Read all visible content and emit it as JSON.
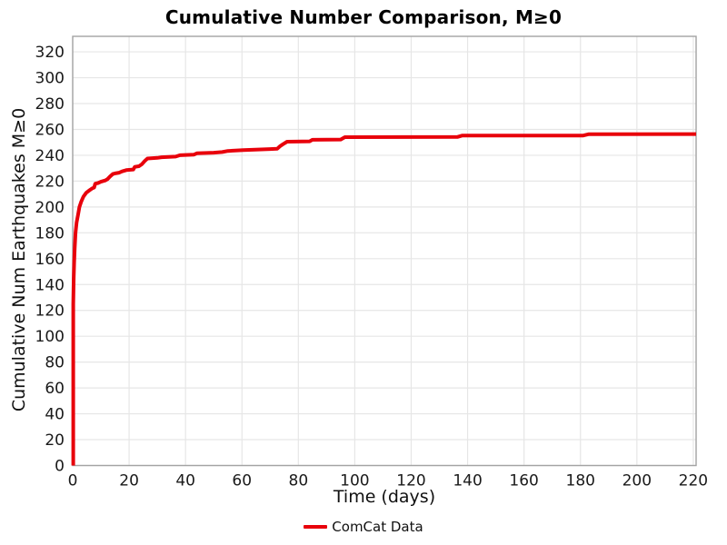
{
  "colors": {
    "line": "#e8000b",
    "grid": "#e6e6e6",
    "spine": "#a3a3a3",
    "text": "#1a1a1a",
    "background": "#ffffff"
  },
  "chart_data": {
    "type": "line",
    "title": "Cumulative Number Comparison, M≥0",
    "xlabel": "Time (days)",
    "ylabel": "Cumulative Num Earthquakes M≥0",
    "xlim": [
      0,
      221
    ],
    "ylim": [
      0,
      332
    ],
    "xticks": [
      0,
      20,
      40,
      60,
      80,
      100,
      120,
      140,
      160,
      180,
      200,
      220
    ],
    "yticks": [
      0,
      20,
      40,
      60,
      80,
      100,
      120,
      140,
      160,
      180,
      200,
      220,
      240,
      260,
      280,
      300,
      320
    ],
    "grid": true,
    "legend": {
      "position": "bottom-center",
      "entries": [
        {
          "label": "ComCat Data",
          "color": "#e8000b"
        }
      ]
    },
    "series": [
      {
        "name": "ComCat Data",
        "color": "#e8000b",
        "line_width": 4,
        "x": [
          0.2,
          0.2,
          0.35,
          0.5,
          0.7,
          1,
          1.4,
          1.9,
          2.4,
          3,
          3.8,
          4.8,
          6,
          7,
          7.6,
          8,
          9,
          10,
          11.5,
          12.3,
          13.2,
          14.2,
          15,
          16.5,
          17.5,
          19,
          21.5,
          22,
          23.5,
          24.5,
          25.5,
          26.5,
          30,
          31.5,
          36.5,
          38,
          43,
          44,
          50,
          53,
          55,
          60.5,
          70,
          72.5,
          73.5,
          74.5,
          76,
          84,
          85,
          95,
          96.5,
          136.5,
          138,
          181,
          183,
          221
        ],
        "y": [
          0,
          125,
          145,
          157,
          168,
          180,
          188,
          194,
          200,
          204,
          208,
          211,
          213,
          214.5,
          215,
          218,
          218.5,
          219.5,
          220.5,
          221.5,
          223.5,
          225.5,
          226,
          226.5,
          227.5,
          228.5,
          229,
          231,
          231.5,
          233,
          235.5,
          237.5,
          238,
          238.5,
          239,
          240,
          240.5,
          241.5,
          242,
          242.5,
          243.3,
          244,
          244.8,
          245,
          247,
          248.5,
          250.5,
          250.8,
          252,
          252.2,
          254,
          254.2,
          255.2,
          255.3,
          256.3,
          256.4
        ]
      }
    ]
  }
}
